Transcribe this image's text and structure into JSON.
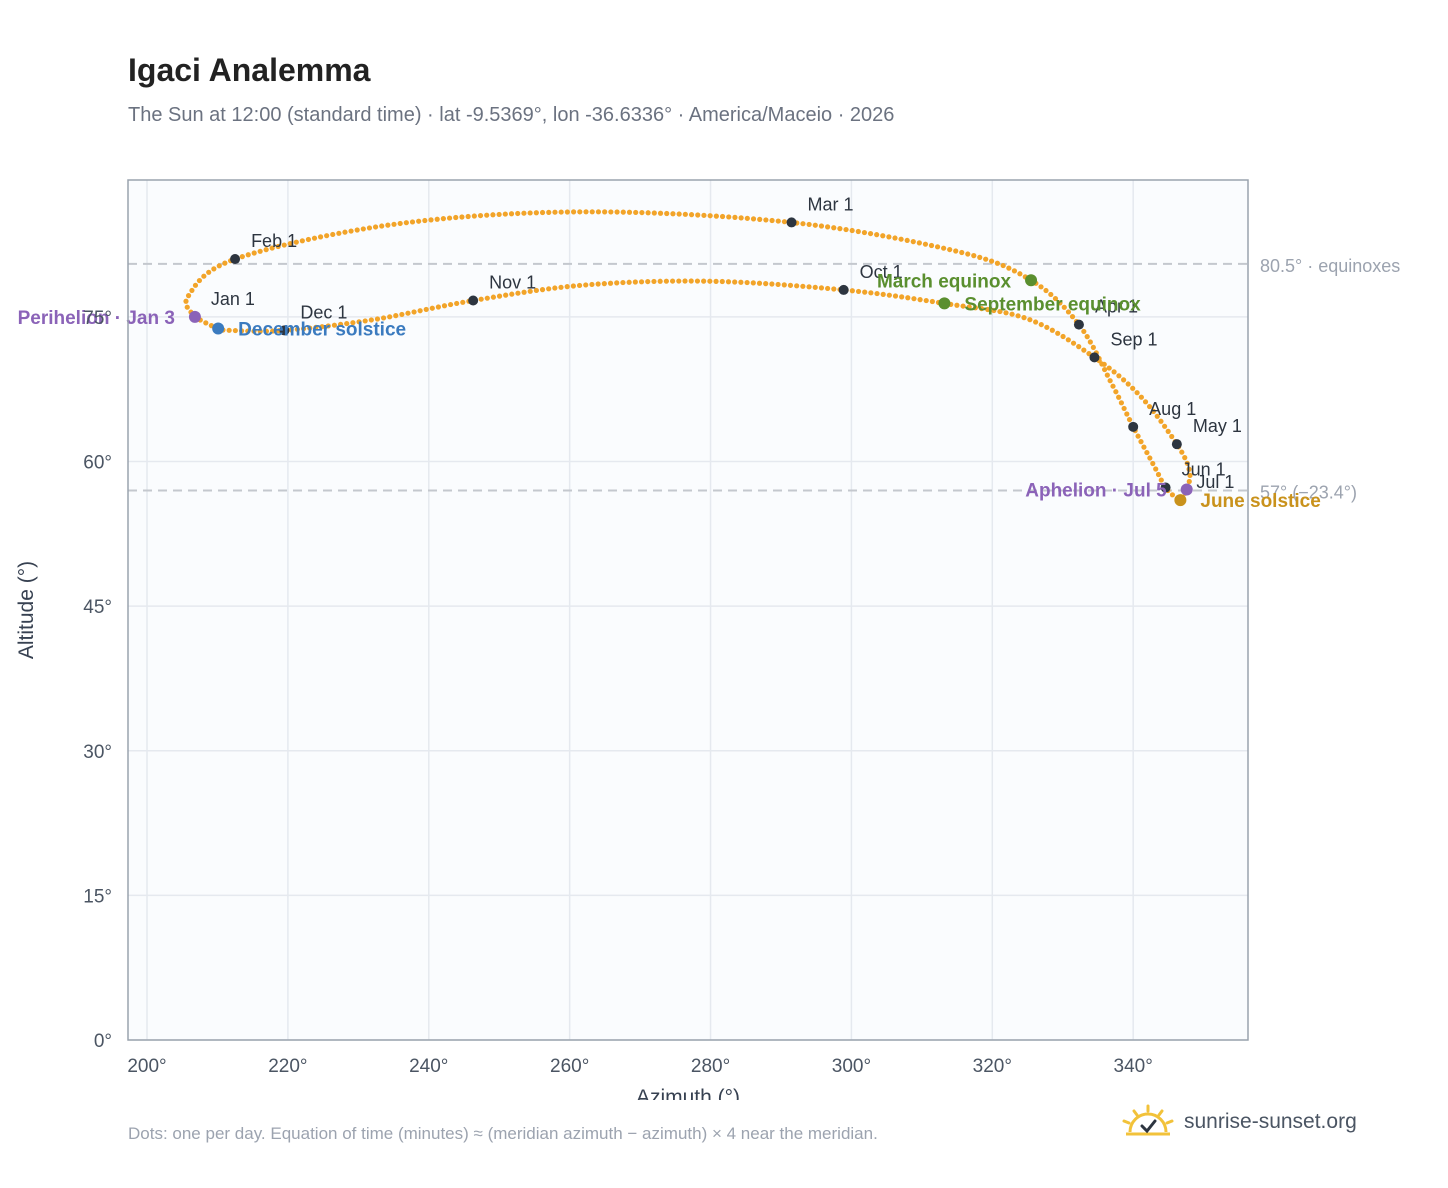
{
  "header": {
    "title": "Igaci Analemma",
    "subtitle": "The Sun at 12:00 (standard time) · lat -9.5369°, lon -36.6336° · America/Maceio · 2026"
  },
  "footer": {
    "note": "Dots: one per day. Equation of time (minutes) ≈ (meridian azimuth − azimuth) × 4 near the meridian.",
    "brand": "sunrise-sunset.org"
  },
  "colors": {
    "curve": "#f2a429",
    "month_marker": "#2d3540",
    "perihelion": "#8b63b8",
    "aphelion": "#8b63b8",
    "equinox": "#5a8f2f",
    "december_solstice": "#3b7bbf",
    "june_solstice": "#c9921c",
    "plot_bg": "#fafcfe",
    "grid": "#e5e9ef",
    "reference_line": "#c4c8ce"
  },
  "chart_data": {
    "type": "scatter",
    "xlabel": "Azimuth (°)",
    "ylabel": "Altitude (°)",
    "xlim": [
      197.3,
      356.3
    ],
    "ylim": [
      0,
      89.2
    ],
    "x_ticks": [
      200,
      220,
      240,
      260,
      280,
      300,
      320,
      340
    ],
    "x_tick_labels": [
      "200°",
      "220°",
      "240°",
      "260°",
      "280°",
      "300°",
      "320°",
      "340°"
    ],
    "y_ticks": [
      0,
      15,
      30,
      45,
      60,
      75
    ],
    "y_tick_labels": [
      "0°",
      "15°",
      "30°",
      "45°",
      "60°",
      "75°"
    ],
    "grid": true,
    "reference_lines": [
      {
        "y": 80.5,
        "label": "80.5° · equinoxes"
      },
      {
        "y": 57,
        "label": "57° (−23.4°)"
      }
    ],
    "series": [
      {
        "points": [
          {
            "x": 206.8,
            "y": 75.0
          },
          {
            "x": 205.8,
            "y": 77.1
          },
          {
            "x": 212.5,
            "y": 81.0
          },
          {
            "x": 235.0,
            "y": 84.6
          },
          {
            "x": 262.0,
            "y": 85.9
          },
          {
            "x": 291.5,
            "y": 84.8
          },
          {
            "x": 315.0,
            "y": 81.8
          },
          {
            "x": 325.5,
            "y": 78.8
          },
          {
            "x": 332.3,
            "y": 74.2
          },
          {
            "x": 337.0,
            "y": 68.0
          },
          {
            "x": 340.0,
            "y": 63.6
          },
          {
            "x": 343.0,
            "y": 59.5
          },
          {
            "x": 344.6,
            "y": 57.3
          },
          {
            "x": 346.0,
            "y": 56.3
          },
          {
            "x": 346.7,
            "y": 56.0
          },
          {
            "x": 347.6,
            "y": 57.1
          },
          {
            "x": 348.0,
            "y": 59.0
          },
          {
            "x": 346.2,
            "y": 61.8
          },
          {
            "x": 341.0,
            "y": 66.8
          },
          {
            "x": 334.5,
            "y": 70.8
          },
          {
            "x": 325.0,
            "y": 74.8
          },
          {
            "x": 313.2,
            "y": 76.4
          },
          {
            "x": 298.9,
            "y": 77.8
          },
          {
            "x": 280.0,
            "y": 78.7
          },
          {
            "x": 262.0,
            "y": 78.3
          },
          {
            "x": 246.3,
            "y": 76.7
          },
          {
            "x": 232.0,
            "y": 74.7
          },
          {
            "x": 219.5,
            "y": 73.6
          },
          {
            "x": 212.0,
            "y": 73.6
          },
          {
            "x": 210.1,
            "y": 73.8
          },
          {
            "x": 207.5,
            "y": 74.7
          },
          {
            "x": 206.8,
            "y": 75.0
          }
        ]
      }
    ],
    "month_markers": [
      {
        "label": "Jan 1",
        "x": 206.8,
        "y": 75.0
      },
      {
        "label": "Feb 1",
        "x": 212.5,
        "y": 81.0
      },
      {
        "label": "Mar 1",
        "x": 291.5,
        "y": 84.8
      },
      {
        "label": "Apr 1",
        "x": 332.3,
        "y": 74.2
      },
      {
        "label": "May 1",
        "x": 346.2,
        "y": 61.8
      },
      {
        "label": "Jun 1",
        "x": 344.6,
        "y": 57.3
      },
      {
        "label": "Jul 1",
        "x": 346.7,
        "y": 56.0
      },
      {
        "label": "Aug 1",
        "x": 340.0,
        "y": 63.6
      },
      {
        "label": "Sep 1",
        "x": 334.5,
        "y": 70.8
      },
      {
        "label": "Oct 1",
        "x": 298.9,
        "y": 77.8
      },
      {
        "label": "Nov 1",
        "x": 246.3,
        "y": 76.7
      },
      {
        "label": "Dec 1",
        "x": 219.5,
        "y": 73.6
      }
    ],
    "events": [
      {
        "label": "Perihelion · Jan 3",
        "x": 206.8,
        "y": 75.0,
        "kind": "perihelion",
        "anchor": "end"
      },
      {
        "label": "March equinox",
        "x": 325.5,
        "y": 78.8,
        "kind": "equinox",
        "anchor": "end"
      },
      {
        "label": "September equinox",
        "x": 313.2,
        "y": 76.4,
        "kind": "equinox",
        "anchor": "start"
      },
      {
        "label": "December solstice",
        "x": 210.1,
        "y": 73.8,
        "kind": "december_solstice",
        "anchor": "start"
      },
      {
        "label": "Aphelion · Jul 5",
        "x": 347.6,
        "y": 57.1,
        "kind": "aphelion",
        "anchor": "end"
      },
      {
        "label": "June solstice",
        "x": 346.7,
        "y": 56.0,
        "kind": "june_solstice",
        "anchor": "start"
      }
    ]
  }
}
